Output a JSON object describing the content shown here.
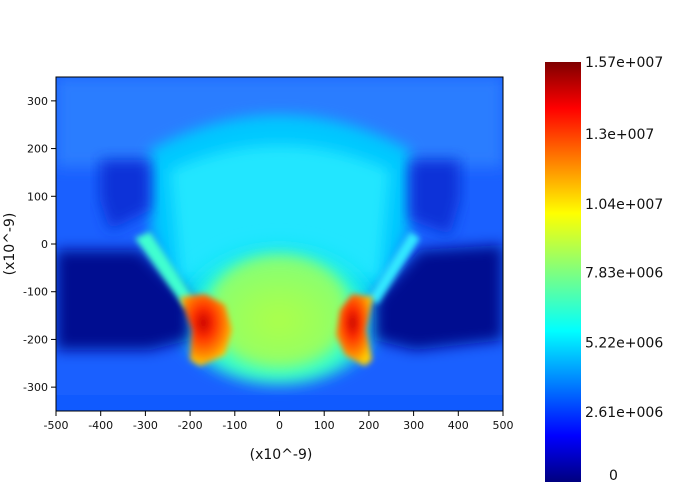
{
  "chart_data": {
    "type": "heatmap",
    "title": "",
    "xlabel": "(x10^-9)",
    "ylabel": "(x10^-9)",
    "xlim": [
      -500,
      500
    ],
    "ylim": [
      -350,
      350
    ],
    "x_ticks": [
      -500,
      -400,
      -300,
      -200,
      -100,
      0,
      100,
      200,
      300,
      400,
      500
    ],
    "y_ticks": [
      -300,
      -200,
      -100,
      0,
      100,
      200,
      300
    ],
    "colormap": "jet",
    "colorbar": {
      "min": 0,
      "max": 15700000,
      "tick_labels": [
        "1.57e+007",
        "1.3e+007",
        "1.04e+007",
        "7.83e+006",
        "5.22e+006",
        "2.61e+006",
        "0"
      ],
      "tick_values": [
        15700000,
        13000000,
        10400000,
        7830000,
        5220000,
        2610000,
        0
      ]
    },
    "grid": false,
    "field_features": [
      {
        "x": -190,
        "y": -175,
        "value": 15000000
      },
      {
        "x": 185,
        "y": -180,
        "value": 13500000
      },
      {
        "x": 0,
        "y": -150,
        "value": 9500000
      },
      {
        "x": 0,
        "y": 250,
        "value": 5000000
      },
      {
        "x": -400,
        "y": -150,
        "value": 800000
      },
      {
        "x": 400,
        "y": -150,
        "value": 800000
      }
    ]
  }
}
